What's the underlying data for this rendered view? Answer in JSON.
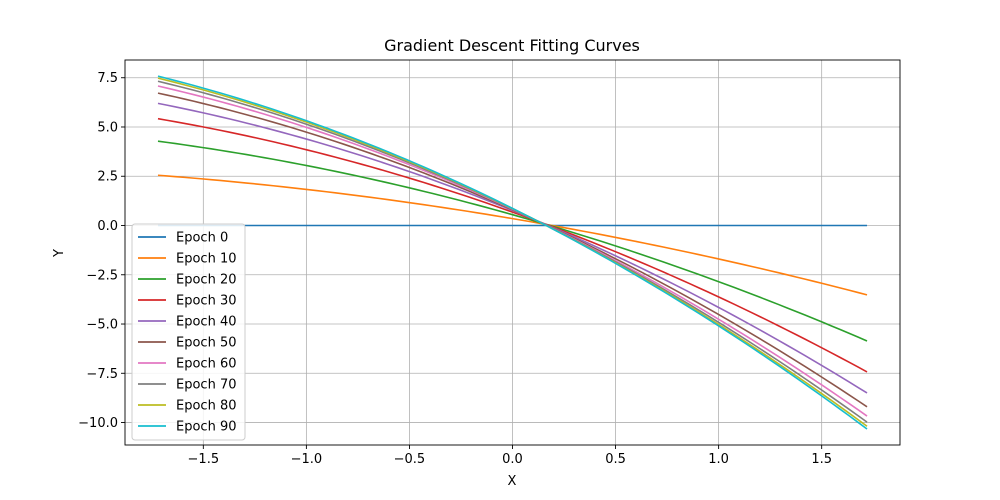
{
  "chart_data": {
    "type": "line",
    "title": "Gradient Descent Fitting Curves",
    "xlabel": "X",
    "ylabel": "Y",
    "xlim": [
      -1.88,
      1.88
    ],
    "ylim": [
      -11.14,
      8.4
    ],
    "xticks": [
      -1.5,
      -1.0,
      -0.5,
      0.0,
      0.5,
      1.0,
      1.5
    ],
    "xtick_labels": [
      "−1.5",
      "−1.0",
      "−0.5",
      "0.0",
      "0.5",
      "1.0",
      "1.5"
    ],
    "yticks": [
      -10.0,
      -7.5,
      -5.0,
      -2.5,
      0.0,
      2.5,
      5.0,
      7.5
    ],
    "ytick_labels": [
      "−10.0",
      "−7.5",
      "−5.0",
      "−2.5",
      "0.0",
      "2.5",
      "5.0",
      "7.5"
    ],
    "grid": true,
    "legend_position": "lower-left",
    "x_range": [
      -1.72,
      1.72
    ],
    "series": [
      {
        "name": "Epoch 0",
        "color": "#1f77b4",
        "y_start": 0.0,
        "y_zero": 0.0,
        "y_end": 0.0
      },
      {
        "name": "Epoch 10",
        "color": "#ff7f0e",
        "y_start": 2.55,
        "y_zero": 0.35,
        "y_end": -3.52
      },
      {
        "name": "Epoch 20",
        "color": "#2ca02c",
        "y_start": 4.28,
        "y_zero": 0.55,
        "y_end": -5.86
      },
      {
        "name": "Epoch 30",
        "color": "#d62728",
        "y_start": 5.42,
        "y_zero": 0.68,
        "y_end": -7.43
      },
      {
        "name": "Epoch 40",
        "color": "#9467bd",
        "y_start": 6.2,
        "y_zero": 0.76,
        "y_end": -8.5
      },
      {
        "name": "Epoch 50",
        "color": "#8c564b",
        "y_start": 6.72,
        "y_zero": 0.8,
        "y_end": -9.2
      },
      {
        "name": "Epoch 60",
        "color": "#e377c2",
        "y_start": 7.08,
        "y_zero": 0.83,
        "y_end": -9.67
      },
      {
        "name": "Epoch 70",
        "color": "#7f7f7f",
        "y_start": 7.32,
        "y_zero": 0.85,
        "y_end": -9.98
      },
      {
        "name": "Epoch 80",
        "color": "#bcbd22",
        "y_start": 7.48,
        "y_zero": 0.86,
        "y_end": -10.19
      },
      {
        "name": "Epoch 90",
        "color": "#17becf",
        "y_start": 7.58,
        "y_zero": 0.87,
        "y_end": -10.33
      }
    ]
  }
}
